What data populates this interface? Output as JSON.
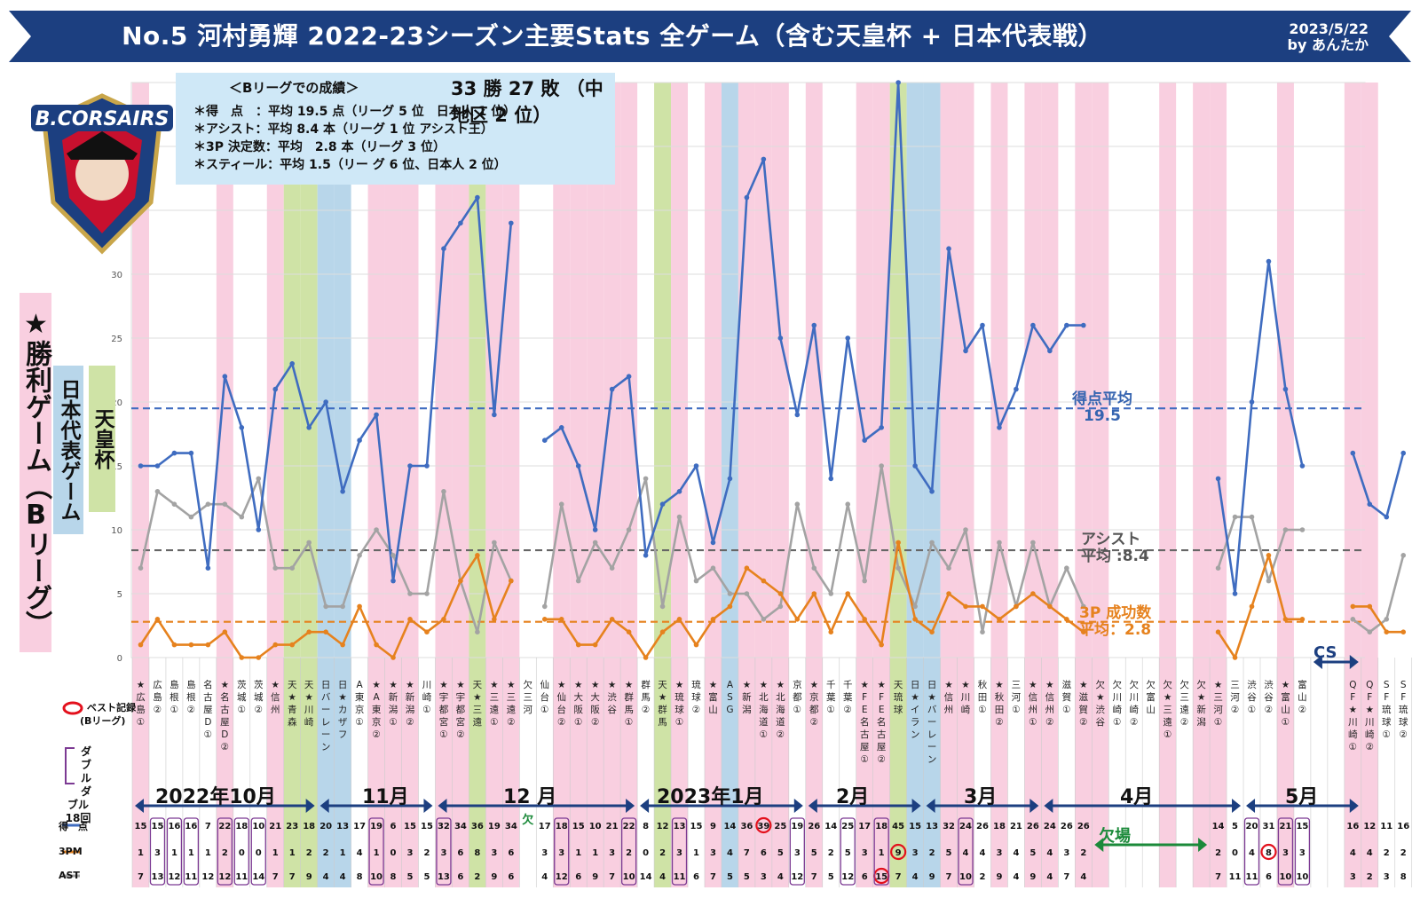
{
  "header": {
    "title": "No.5 河村勇輝 2022-23シーズン主要Stats 全ゲーム（含む天皇杯 + 日本代表戦）",
    "date": "2023/5/22",
    "author": "by あんたか"
  },
  "record": {
    "heading": "＜Bリーグでの成績＞",
    "win_loss": "33 勝 27 敗 （中地区 2 位）",
    "lines": [
      "＊得　点　：平均 19.5 点（リーグ 5 位　日本人 1 位）",
      "＊アシスト：平均 8.4 本（リーグ 1 位 アシスト王）",
      "＊3P 決定数：平均　2.8 本（リーグ 3 位）",
      "＊スティール：平均 1.5（リー グ 6 位、日本人 2 位）"
    ]
  },
  "logo": {
    "text": "B.CORSAIRS",
    "brand_color": "#1c3f80",
    "accent_color": "#c8102e"
  },
  "side_labels": {
    "wins": "★勝利ゲーム（Bリーグ）",
    "japan": "日本代表ゲーム",
    "tenno": "天皇杯"
  },
  "averages": {
    "points_label": "得点平均",
    "points_value": "19.5",
    "assist_label": "アシスト",
    "assist_value": "平均 :8.4",
    "threes_label": "3P 成功数",
    "threes_value": "平均：2.8"
  },
  "legend": {
    "best_label": "ベスト記録",
    "best_sub": "(Bリーグ)",
    "dd_label": "ダブル",
    "dd_sub": "ダブル",
    "dd_count": "18回"
  },
  "row_labels": {
    "points": "得　点",
    "threes": "3PM",
    "assists": "AST"
  },
  "absence_label": "欠場",
  "absence_marker": "欠",
  "cs_label": "CS",
  "months": [
    "2022年10月",
    "11月",
    "12 月",
    "2023年1月",
    "2月",
    "3月",
    "4月",
    "5月"
  ],
  "colors": {
    "points": "#3f6cc0",
    "threes": "#e6821e",
    "assists": "#a3a3a3",
    "win_band": "#f9cfe0",
    "japan_band": "#b8d6ea",
    "tenno_band": "#cfe3a6",
    "banner": "#1c3f80",
    "best": "#e3101c",
    "double_double": "#7c3a93"
  },
  "chart_data": {
    "type": "line",
    "ylim": [
      0,
      45
    ],
    "yticks": [
      0,
      5,
      10,
      15,
      20,
      25,
      30
    ],
    "reference_lines": {
      "points": 19.5,
      "assists": 8.4,
      "threes": 2.8
    },
    "games": [
      {
        "opp": "★広島①",
        "pts": 15,
        "tpm": 1,
        "ast": 7,
        "type": "win"
      },
      {
        "opp": "広島②",
        "pts": 15,
        "tpm": 3,
        "ast": 13,
        "dd": true
      },
      {
        "opp": "島根①",
        "pts": 16,
        "tpm": 1,
        "ast": 12,
        "dd": true
      },
      {
        "opp": "島根②",
        "pts": 16,
        "tpm": 1,
        "ast": 11,
        "dd": true
      },
      {
        "opp": "名古屋D①",
        "pts": 7,
        "tpm": 1,
        "ast": 12
      },
      {
        "opp": "★名古屋D②",
        "pts": 22,
        "tpm": 2,
        "ast": 12,
        "type": "win",
        "dd": true
      },
      {
        "opp": "茨城①",
        "pts": 18,
        "tpm": 0,
        "ast": 11,
        "dd": true
      },
      {
        "opp": "茨城②",
        "pts": 10,
        "tpm": 0,
        "ast": 14,
        "dd": true
      },
      {
        "opp": "★信州",
        "pts": 21,
        "tpm": 1,
        "ast": 7,
        "type": "win"
      },
      {
        "opp": "天★青森",
        "pts": 23,
        "tpm": 1,
        "ast": 7,
        "type": "tenno"
      },
      {
        "opp": "天★川崎",
        "pts": 18,
        "tpm": 2,
        "ast": 9,
        "type": "tenno"
      },
      {
        "opp": "日バーレーン",
        "pts": 20,
        "tpm": 2,
        "ast": 4,
        "type": "japan"
      },
      {
        "opp": "日★カザフ",
        "pts": 13,
        "tpm": 1,
        "ast": 4,
        "type": "japan"
      },
      {
        "opp": "A東京①",
        "pts": 17,
        "tpm": 4,
        "ast": 8
      },
      {
        "opp": "★A東京②",
        "pts": 19,
        "tpm": 1,
        "ast": 10,
        "type": "win",
        "dd": true
      },
      {
        "opp": "★新潟①",
        "pts": 6,
        "tpm": 0,
        "ast": 8,
        "type": "win"
      },
      {
        "opp": "★新潟②",
        "pts": 15,
        "tpm": 3,
        "ast": 5,
        "type": "win"
      },
      {
        "opp": "川崎①",
        "pts": 15,
        "tpm": 2,
        "ast": 5
      },
      {
        "opp": "★宇都宮①",
        "pts": 32,
        "tpm": 3,
        "ast": 13,
        "type": "win",
        "dd": true
      },
      {
        "opp": "★宇都宮②",
        "pts": 34,
        "tpm": 6,
        "ast": 6,
        "type": "win"
      },
      {
        "opp": "天★三遠",
        "pts": 36,
        "tpm": 8,
        "ast": 2,
        "type": "tenno"
      },
      {
        "opp": "★三遠①",
        "pts": 19,
        "tpm": 3,
        "ast": 9,
        "type": "win"
      },
      {
        "opp": "★三遠②",
        "pts": 34,
        "tpm": 6,
        "ast": 6,
        "type": "win"
      },
      {
        "opp": "欠三河",
        "pts": null,
        "tpm": null,
        "ast": null,
        "absent": true
      },
      {
        "opp": "仙台①",
        "pts": 17,
        "tpm": 3,
        "ast": 4
      },
      {
        "opp": "★仙台②",
        "pts": 18,
        "tpm": 3,
        "ast": 12,
        "type": "win",
        "dd": true
      },
      {
        "opp": "★大阪①",
        "pts": 15,
        "tpm": 1,
        "ast": 6,
        "type": "win"
      },
      {
        "opp": "★大阪②",
        "pts": 10,
        "tpm": 1,
        "ast": 9,
        "type": "win"
      },
      {
        "opp": "★渋谷",
        "pts": 21,
        "tpm": 3,
        "ast": 7,
        "type": "win"
      },
      {
        "opp": "★群馬①",
        "pts": 22,
        "tpm": 2,
        "ast": 10,
        "type": "win",
        "dd": true
      },
      {
        "opp": "群馬②",
        "pts": 8,
        "tpm": 0,
        "ast": 14
      },
      {
        "opp": "天★群馬",
        "pts": 12,
        "tpm": 2,
        "ast": 4,
        "type": "tenno"
      },
      {
        "opp": "★琉球①",
        "pts": 13,
        "tpm": 3,
        "ast": 11,
        "type": "win",
        "dd": true
      },
      {
        "opp": "琉球②",
        "pts": 15,
        "tpm": 1,
        "ast": 6
      },
      {
        "opp": "★富山",
        "pts": 9,
        "tpm": 3,
        "ast": 7,
        "type": "win"
      },
      {
        "opp": "ASG",
        "pts": 14,
        "tpm": 4,
        "ast": 5,
        "type": "japan"
      },
      {
        "opp": "★新潟",
        "pts": 36,
        "tpm": 7,
        "ast": 5,
        "type": "win"
      },
      {
        "opp": "★北海道①",
        "pts": 39,
        "tpm": 6,
        "ast": 3,
        "type": "win",
        "best": "pts"
      },
      {
        "opp": "★北海道②",
        "pts": 25,
        "tpm": 5,
        "ast": 4,
        "type": "win"
      },
      {
        "opp": "京都①",
        "pts": 19,
        "tpm": 3,
        "ast": 12,
        "dd": true
      },
      {
        "opp": "★京都②",
        "pts": 26,
        "tpm": 5,
        "ast": 7,
        "type": "win"
      },
      {
        "opp": "千葉①",
        "pts": 14,
        "tpm": 2,
        "ast": 5
      },
      {
        "opp": "千葉②",
        "pts": 25,
        "tpm": 5,
        "ast": 12,
        "dd": true
      },
      {
        "opp": "★FE名古屋①",
        "pts": 17,
        "tpm": 3,
        "ast": 6,
        "type": "win"
      },
      {
        "opp": "★FE名古屋②",
        "pts": 18,
        "tpm": 1,
        "ast": 15,
        "type": "win",
        "dd": true,
        "best": "ast"
      },
      {
        "opp": "天琉球",
        "pts": 45,
        "tpm": 9,
        "ast": 7,
        "type": "tenno",
        "best": "tpm"
      },
      {
        "opp": "日★イラン",
        "pts": 15,
        "tpm": 3,
        "ast": 4,
        "type": "japan"
      },
      {
        "opp": "日★バーレーン",
        "pts": 13,
        "tpm": 2,
        "ast": 9,
        "type": "japan"
      },
      {
        "opp": "★信州",
        "pts": 32,
        "tpm": 5,
        "ast": 7,
        "type": "win"
      },
      {
        "opp": "★川崎",
        "pts": 24,
        "tpm": 4,
        "ast": 10,
        "type": "win",
        "dd": true
      },
      {
        "opp": "秋田①",
        "pts": 26,
        "tpm": 4,
        "ast": 2
      },
      {
        "opp": "★秋田②",
        "pts": 18,
        "tpm": 3,
        "ast": 9,
        "type": "win"
      },
      {
        "opp": "三河①",
        "pts": 21,
        "tpm": 4,
        "ast": 4
      },
      {
        "opp": "★信州①",
        "pts": 26,
        "tpm": 5,
        "ast": 9,
        "type": "win"
      },
      {
        "opp": "★信州②",
        "pts": 24,
        "tpm": 4,
        "ast": 4,
        "type": "win"
      },
      {
        "opp": "滋賀①",
        "pts": 26,
        "tpm": 3,
        "ast": 7
      },
      {
        "opp": "★滋賀②",
        "pts": 26,
        "tpm": 2,
        "ast": 4,
        "type": "win"
      },
      {
        "opp": "欠★渋谷",
        "pts": null,
        "tpm": null,
        "ast": null,
        "absent": true,
        "type": "win"
      },
      {
        "opp": "欠川崎①",
        "pts": null,
        "tpm": null,
        "ast": null,
        "absent": true
      },
      {
        "opp": "欠川崎②",
        "pts": null,
        "tpm": null,
        "ast": null,
        "absent": true
      },
      {
        "opp": "欠富山",
        "pts": null,
        "tpm": null,
        "ast": null,
        "absent": true
      },
      {
        "opp": "欠★三遠①",
        "pts": null,
        "tpm": null,
        "ast": null,
        "absent": true,
        "type": "win"
      },
      {
        "opp": "欠三遠②",
        "pts": null,
        "tpm": null,
        "ast": null,
        "absent": true
      },
      {
        "opp": "欠★新潟",
        "pts": null,
        "tpm": null,
        "ast": null,
        "absent": true,
        "type": "win"
      },
      {
        "opp": "★三河①",
        "pts": 14,
        "tpm": 2,
        "ast": 7,
        "type": "win"
      },
      {
        "opp": "三河②",
        "pts": 5,
        "tpm": 0,
        "ast": 11
      },
      {
        "opp": "渋谷①",
        "pts": 20,
        "tpm": 4,
        "ast": 11,
        "dd": true
      },
      {
        "opp": "渋谷②",
        "pts": 31,
        "tpm": 8,
        "ast": 6,
        "best": "tpm"
      },
      {
        "opp": "★富山①",
        "pts": 21,
        "tpm": 3,
        "ast": 10,
        "type": "win",
        "dd": true
      },
      {
        "opp": "富山②",
        "pts": 15,
        "tpm": 3,
        "ast": 10,
        "dd": true
      },
      {
        "opp": "",
        "pts": null,
        "tpm": null,
        "ast": null,
        "gap": true
      },
      {
        "opp": "",
        "pts": null,
        "tpm": null,
        "ast": null,
        "gap": true
      },
      {
        "opp": "QF★川崎①",
        "pts": 16,
        "tpm": 4,
        "ast": 3,
        "type": "win"
      },
      {
        "opp": "QF★川崎②",
        "pts": 12,
        "tpm": 4,
        "ast": 2,
        "type": "win"
      },
      {
        "opp": "SF琉球①",
        "pts": 11,
        "tpm": 2,
        "ast": 3
      },
      {
        "opp": "SF琉球②",
        "pts": 16,
        "tpm": 2,
        "ast": 8
      }
    ]
  }
}
